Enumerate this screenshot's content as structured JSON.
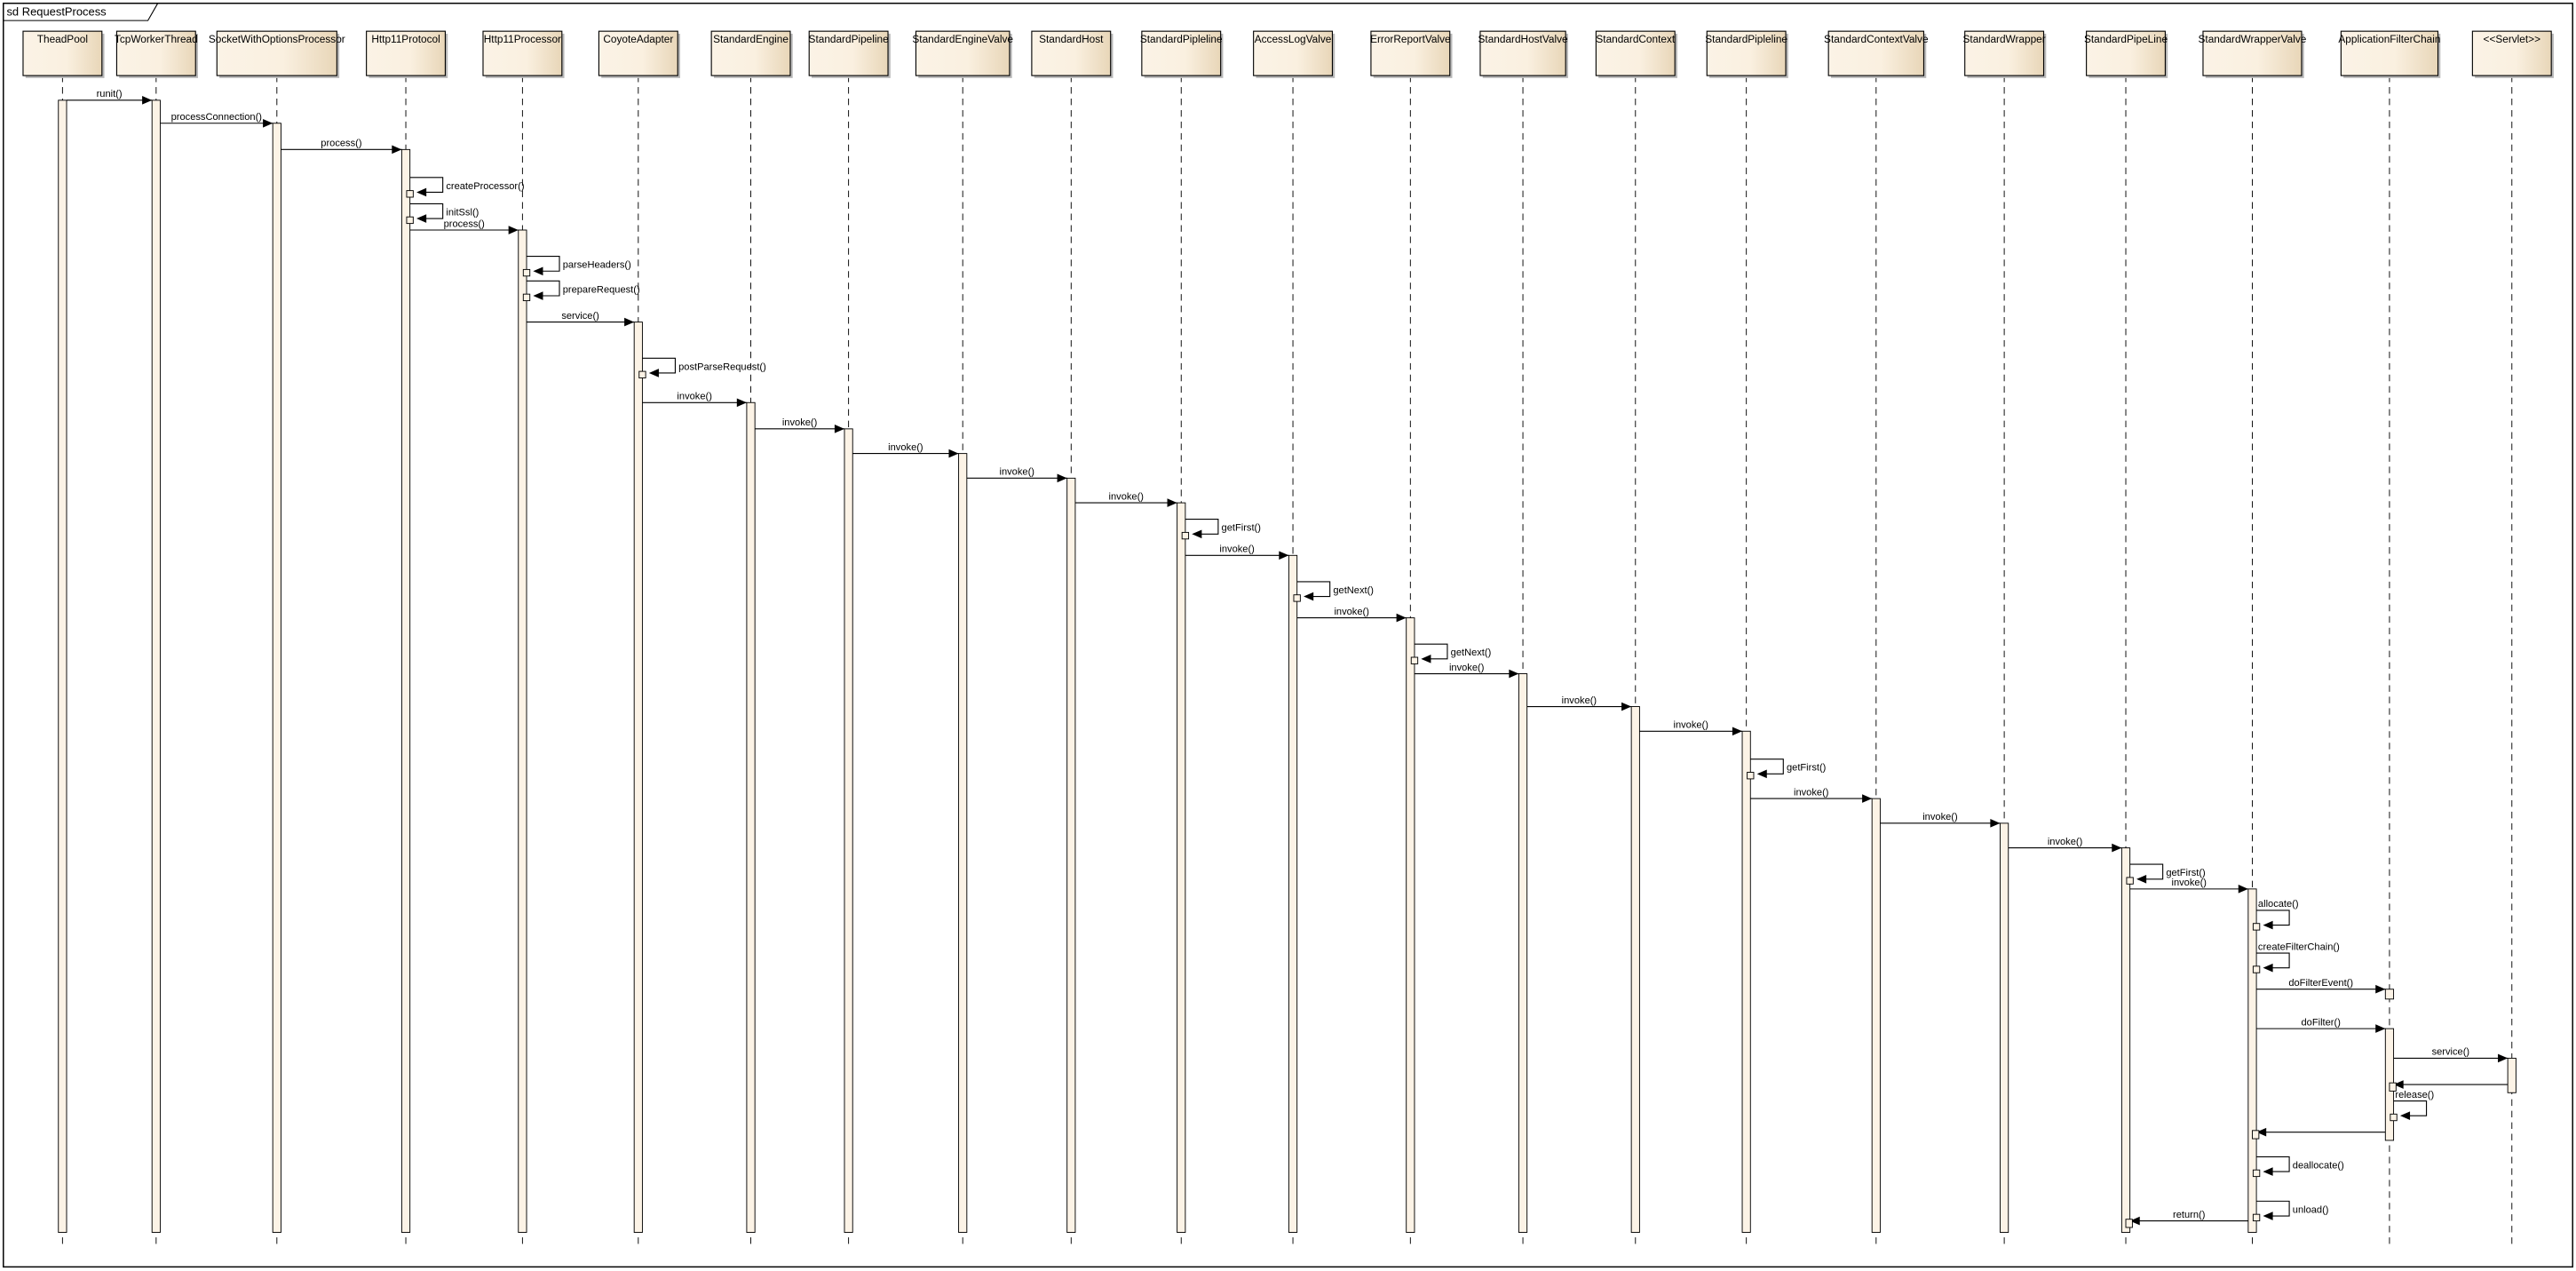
{
  "frame": {
    "title": "sd RequestProcess"
  },
  "colors": {
    "participant_fill_light": "#fbf3e6",
    "participant_fill_dark": "#ead9bd",
    "activation_fill": "#fcf3e6",
    "line": "#000000",
    "shadow": "#b0b0b0"
  },
  "participants": [
    "TheadPool",
    "TcpWorkerThread",
    "SocketWithOptionsProcessor",
    "Http11Protocol",
    "Http11Processor",
    "CoyoteAdapter",
    "StandardEngine",
    "StandardPipeline",
    "StandardEngineValve",
    "StandardHost",
    "StandardPipleline",
    "AccessLogValve",
    "ErrorReportValve",
    "StandardHostValve",
    "StandardContext",
    "StandardPipleline",
    "StandardContextValve",
    "StandardWrapper",
    "StandardPipeLine",
    "StandardWrapperValve",
    "ApplicationFilterChain",
    "<<Servlet>>"
  ],
  "messages": [
    {
      "from": 0,
      "to": 1,
      "label": "runit()"
    },
    {
      "from": 1,
      "to": 2,
      "label": "processConnection()"
    },
    {
      "from": 2,
      "to": 3,
      "label": "process()"
    },
    {
      "from": 3,
      "to": 3,
      "label": "createProcessor()"
    },
    {
      "from": 3,
      "to": 3,
      "label": "initSsl()"
    },
    {
      "from": 3,
      "to": 4,
      "label": "process()"
    },
    {
      "from": 4,
      "to": 4,
      "label": "parseHeaders()"
    },
    {
      "from": 4,
      "to": 4,
      "label": "prepareRequest()"
    },
    {
      "from": 4,
      "to": 5,
      "label": "service()"
    },
    {
      "from": 5,
      "to": 5,
      "label": "postParseRequest()"
    },
    {
      "from": 5,
      "to": 6,
      "label": "invoke()"
    },
    {
      "from": 6,
      "to": 7,
      "label": "invoke()"
    },
    {
      "from": 7,
      "to": 8,
      "label": "invoke()"
    },
    {
      "from": 8,
      "to": 9,
      "label": "invoke()"
    },
    {
      "from": 9,
      "to": 10,
      "label": "invoke()"
    },
    {
      "from": 10,
      "to": 10,
      "label": "getFirst()"
    },
    {
      "from": 10,
      "to": 11,
      "label": "invoke()"
    },
    {
      "from": 11,
      "to": 11,
      "label": "getNext()"
    },
    {
      "from": 11,
      "to": 12,
      "label": "invoke()"
    },
    {
      "from": 12,
      "to": 12,
      "label": "getNext()"
    },
    {
      "from": 12,
      "to": 13,
      "label": "invoke()"
    },
    {
      "from": 13,
      "to": 14,
      "label": "invoke()"
    },
    {
      "from": 14,
      "to": 15,
      "label": "invoke()"
    },
    {
      "from": 15,
      "to": 15,
      "label": "getFirst()"
    },
    {
      "from": 15,
      "to": 16,
      "label": "invoke()"
    },
    {
      "from": 16,
      "to": 17,
      "label": "invoke()"
    },
    {
      "from": 17,
      "to": 18,
      "label": "invoke()"
    },
    {
      "from": 18,
      "to": 18,
      "label": "getFirst()"
    },
    {
      "from": 18,
      "to": 19,
      "label": "invoke()"
    },
    {
      "from": 19,
      "to": 19,
      "label": "allocate()"
    },
    {
      "from": 19,
      "to": 19,
      "label": "createFilterChain()"
    },
    {
      "from": 19,
      "to": 20,
      "label": "doFilterEvent()"
    },
    {
      "from": 19,
      "to": 20,
      "label": "doFilter()"
    },
    {
      "from": 20,
      "to": 21,
      "label": "service()"
    },
    {
      "from": 21,
      "to": 20,
      "label": ""
    },
    {
      "from": 20,
      "to": 20,
      "label": "release()"
    },
    {
      "from": 20,
      "to": 19,
      "label": ""
    },
    {
      "from": 19,
      "to": 19,
      "label": "deallocate()"
    },
    {
      "from": 19,
      "to": 19,
      "label": "unload()"
    },
    {
      "from": 19,
      "to": 18,
      "label": "return()"
    }
  ]
}
